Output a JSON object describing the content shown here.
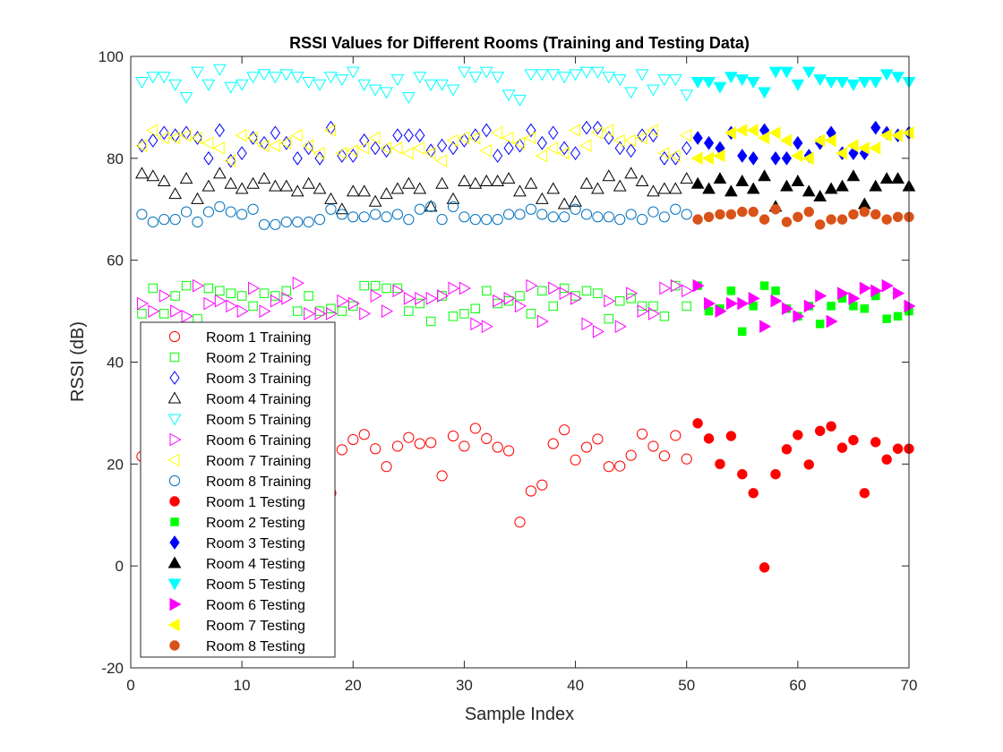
{
  "chart_data": {
    "type": "scatter",
    "title": "RSSI Values for Different Rooms (Training and Testing Data)",
    "xlabel": "Sample Index",
    "ylabel": "RSSI (dB)",
    "xlim": [
      0,
      70
    ],
    "ylim": [
      -20,
      100
    ],
    "xticks": [
      0,
      10,
      20,
      30,
      40,
      50,
      60,
      70
    ],
    "yticks": [
      -20,
      0,
      20,
      40,
      60,
      80,
      100
    ],
    "grid": false,
    "legend_position": "left",
    "series": [
      {
        "name": "Room 1 Training",
        "marker": "circle",
        "filled": false,
        "color": "#ff0000",
        "x": [
          1,
          2,
          3,
          4,
          5,
          6,
          7,
          8,
          9,
          10,
          11,
          12,
          13,
          14,
          15,
          16,
          17,
          18,
          19,
          20,
          21,
          22,
          23,
          24,
          25,
          26,
          27,
          28,
          29,
          30,
          31,
          32,
          33,
          34,
          35,
          36,
          37,
          38,
          39,
          40,
          41,
          42,
          43,
          44,
          45,
          46,
          47,
          48,
          49,
          50
        ],
        "y": [
          21.5,
          23,
          22,
          24,
          22.5,
          23,
          22,
          21,
          24,
          22.5,
          23,
          21,
          22,
          23,
          22,
          21,
          20,
          14.3,
          22.8,
          24.8,
          25.8,
          23,
          19.5,
          23.5,
          25.2,
          24,
          24.2,
          17.7,
          25.5,
          23.5,
          27,
          25,
          23.3,
          22.6,
          8.6,
          14.7,
          15.9,
          24,
          26.7,
          20.8,
          23.3,
          24.9,
          19.5,
          19.6,
          21.7,
          25.9,
          23.5,
          21.6,
          25.6,
          21
        ]
      },
      {
        "name": "Room 2 Training",
        "marker": "square",
        "filled": false,
        "color": "#00ff00",
        "x": [
          1,
          2,
          3,
          4,
          5,
          6,
          7,
          8,
          9,
          10,
          11,
          12,
          13,
          14,
          15,
          16,
          17,
          18,
          19,
          20,
          21,
          22,
          23,
          24,
          25,
          26,
          27,
          28,
          29,
          30,
          31,
          32,
          33,
          34,
          35,
          36,
          37,
          38,
          39,
          40,
          41,
          42,
          43,
          44,
          45,
          46,
          47,
          48,
          49,
          50
        ],
        "y": [
          49.5,
          54.5,
          49.5,
          53,
          55,
          48.5,
          54.5,
          54,
          53.5,
          53,
          51,
          53.5,
          53,
          54,
          50,
          53,
          50,
          50.5,
          50,
          51,
          55,
          55,
          54.5,
          54.5,
          50,
          51.5,
          48,
          53,
          49,
          49.5,
          50.5,
          54,
          51.5,
          52,
          53,
          49.5,
          54,
          51,
          54.5,
          53,
          54,
          53.5,
          48.5,
          52,
          52.5,
          51,
          51,
          49,
          55,
          51
        ]
      },
      {
        "name": "Room 3 Training",
        "marker": "diamond",
        "filled": false,
        "color": "#0000ff",
        "x": [
          1,
          2,
          3,
          4,
          5,
          6,
          7,
          8,
          9,
          10,
          11,
          12,
          13,
          14,
          15,
          16,
          17,
          18,
          19,
          20,
          21,
          22,
          23,
          24,
          25,
          26,
          27,
          28,
          29,
          30,
          31,
          32,
          33,
          34,
          35,
          36,
          37,
          38,
          39,
          40,
          41,
          42,
          43,
          44,
          45,
          46,
          47,
          48,
          49,
          50
        ],
        "y": [
          82.5,
          83.5,
          85,
          84.5,
          85,
          84,
          80,
          85.5,
          79.5,
          81,
          84,
          83,
          85,
          83,
          80,
          82,
          80,
          86,
          80.5,
          80.5,
          83.5,
          82,
          81.5,
          84.5,
          84.5,
          84.5,
          81.5,
          82.5,
          82,
          83.5,
          84.5,
          85.5,
          80.5,
          82,
          82.5,
          85.5,
          83,
          85,
          82,
          81,
          86,
          86,
          84,
          82,
          81.5,
          84.5,
          84.5,
          80,
          80,
          82
        ]
      },
      {
        "name": "Room 4 Training",
        "marker": "triangle-up",
        "filled": false,
        "color": "#000000",
        "x": [
          1,
          2,
          3,
          4,
          5,
          6,
          7,
          8,
          9,
          10,
          11,
          12,
          13,
          14,
          15,
          16,
          17,
          18,
          19,
          20,
          21,
          22,
          23,
          24,
          25,
          26,
          27,
          28,
          29,
          30,
          31,
          32,
          33,
          34,
          35,
          36,
          37,
          38,
          39,
          40,
          41,
          42,
          43,
          44,
          45,
          46,
          47,
          48,
          49,
          50
        ],
        "y": [
          77,
          76.5,
          75.5,
          73,
          76,
          72,
          74.5,
          77,
          75,
          74,
          75,
          76,
          74.5,
          74.5,
          73.5,
          75,
          74,
          72,
          70,
          73.5,
          73.5,
          71.5,
          73,
          74,
          75,
          74,
          70.5,
          75,
          72,
          75.5,
          75,
          75.5,
          75.5,
          76,
          73.5,
          75,
          72,
          74,
          71,
          71.5,
          75,
          74,
          76.5,
          74.5,
          77,
          75.5,
          73.5,
          74,
          74,
          76
        ]
      },
      {
        "name": "Room 5 Training",
        "marker": "triangle-down",
        "filled": false,
        "color": "#00ffff",
        "x": [
          1,
          2,
          3,
          4,
          5,
          6,
          7,
          8,
          9,
          10,
          11,
          12,
          13,
          14,
          15,
          16,
          17,
          18,
          19,
          20,
          21,
          22,
          23,
          24,
          25,
          26,
          27,
          28,
          29,
          30,
          31,
          32,
          33,
          34,
          35,
          36,
          37,
          38,
          39,
          40,
          41,
          42,
          43,
          44,
          45,
          46,
          47,
          48,
          49,
          50
        ],
        "y": [
          95,
          96,
          96,
          94.5,
          92,
          97,
          94.5,
          97.5,
          94,
          94.5,
          96,
          96.5,
          96,
          96.5,
          96,
          95,
          94.5,
          96,
          95.5,
          97,
          94.5,
          93.5,
          93,
          95.5,
          92,
          96,
          94.5,
          94.5,
          93.5,
          97,
          96,
          97,
          96,
          92.5,
          91.5,
          96.5,
          96.5,
          96.5,
          96,
          96.5,
          97,
          97,
          96,
          95.5,
          93,
          96.5,
          93.5,
          95.5,
          95.5,
          92.5
        ]
      },
      {
        "name": "Room 6 Training",
        "marker": "triangle-right",
        "filled": false,
        "color": "#ff00ff",
        "x": [
          1,
          2,
          3,
          4,
          5,
          6,
          7,
          8,
          9,
          10,
          11,
          12,
          13,
          14,
          15,
          16,
          17,
          18,
          19,
          20,
          21,
          22,
          23,
          24,
          25,
          26,
          27,
          28,
          29,
          30,
          31,
          32,
          33,
          34,
          35,
          36,
          37,
          38,
          39,
          40,
          41,
          42,
          43,
          44,
          45,
          46,
          47,
          48,
          49,
          50
        ],
        "y": [
          51.5,
          50,
          53,
          50,
          49,
          55,
          51.5,
          52,
          51,
          50,
          54.5,
          50,
          52,
          52.5,
          55.5,
          49.5,
          49.5,
          49.5,
          52,
          51.5,
          49.5,
          53,
          50,
          54,
          52.5,
          52.5,
          52.5,
          53,
          54.5,
          54.5,
          47.5,
          47,
          52,
          52.5,
          51,
          55,
          48,
          54.5,
          53.5,
          52.5,
          47.5,
          46,
          52,
          47,
          53.5,
          50,
          49.5,
          54.5,
          55,
          54
        ]
      },
      {
        "name": "Room 7 Training",
        "marker": "triangle-left",
        "filled": false,
        "color": "#ffff00",
        "x": [
          1,
          2,
          3,
          4,
          5,
          6,
          7,
          8,
          9,
          10,
          11,
          12,
          13,
          14,
          15,
          16,
          17,
          18,
          19,
          20,
          21,
          22,
          23,
          24,
          25,
          26,
          27,
          28,
          29,
          30,
          31,
          32,
          33,
          34,
          35,
          36,
          37,
          38,
          39,
          40,
          41,
          42,
          43,
          44,
          45,
          46,
          47,
          48,
          49,
          50
        ],
        "y": [
          82.5,
          85.5,
          84,
          84,
          84.5,
          84,
          83,
          82,
          79.5,
          84.5,
          84,
          82.5,
          82.5,
          83,
          84.5,
          82.5,
          81,
          85.5,
          81,
          81.5,
          82,
          84,
          82,
          82,
          81,
          82,
          81,
          79.5,
          83.5,
          84,
          84,
          81.5,
          85,
          84,
          83,
          84,
          80.5,
          82,
          81,
          85.5,
          82.5,
          85,
          85.5,
          83.5,
          83.5,
          84,
          85.5,
          81,
          80.5,
          84.5
        ]
      },
      {
        "name": "Room 8 Training",
        "marker": "circle",
        "filled": false,
        "color": "#0072bd",
        "x": [
          1,
          2,
          3,
          4,
          5,
          6,
          7,
          8,
          9,
          10,
          11,
          12,
          13,
          14,
          15,
          16,
          17,
          18,
          19,
          20,
          21,
          22,
          23,
          24,
          25,
          26,
          27,
          28,
          29,
          30,
          31,
          32,
          33,
          34,
          35,
          36,
          37,
          38,
          39,
          40,
          41,
          42,
          43,
          44,
          45,
          46,
          47,
          48,
          49,
          50
        ],
        "y": [
          69,
          67.5,
          68,
          68,
          69.5,
          67.5,
          69.5,
          70.5,
          69.5,
          69,
          70,
          67,
          67,
          67.5,
          67.5,
          67.5,
          68,
          70,
          69,
          68.5,
          68.5,
          69,
          68.5,
          69,
          68,
          70,
          70.5,
          68,
          70.5,
          68.5,
          68,
          68,
          68,
          69,
          69,
          70,
          69,
          68.5,
          68.5,
          70,
          69,
          68.5,
          68.5,
          68,
          69,
          68,
          69.5,
          68.5,
          70,
          69
        ]
      },
      {
        "name": "Room 1 Testing",
        "marker": "circle",
        "filled": true,
        "color": "#ff0000",
        "x": [
          51,
          52,
          53,
          54,
          55,
          56,
          57,
          58,
          59,
          60,
          61,
          62,
          63,
          64,
          65,
          66,
          67,
          68,
          69,
          70
        ],
        "y": [
          28,
          25,
          20,
          25.5,
          18,
          14.3,
          -0.3,
          18,
          22.9,
          25.7,
          19.9,
          26.5,
          27.4,
          23.2,
          24.7,
          14.3,
          24.3,
          20.9,
          23,
          23
        ]
      },
      {
        "name": "Room 2 Testing",
        "marker": "square",
        "filled": true,
        "color": "#00ff00",
        "x": [
          51,
          52,
          53,
          54,
          55,
          56,
          57,
          58,
          59,
          60,
          61,
          62,
          63,
          64,
          65,
          66,
          67,
          68,
          69,
          70
        ],
        "y": [
          55,
          50,
          50.5,
          54,
          46,
          51,
          55,
          54,
          50.5,
          49,
          51,
          47.5,
          51,
          52.5,
          51,
          50.5,
          53,
          48.5,
          49,
          50
        ]
      },
      {
        "name": "Room 3 Testing",
        "marker": "diamond",
        "filled": true,
        "color": "#0000ff",
        "x": [
          51,
          52,
          53,
          54,
          55,
          56,
          57,
          58,
          59,
          60,
          61,
          62,
          63,
          64,
          65,
          66,
          67,
          68,
          69,
          70
        ],
        "y": [
          84,
          83,
          82,
          85,
          80.5,
          80,
          85.5,
          80,
          80,
          83,
          80.5,
          83,
          85,
          81,
          81,
          81,
          86,
          85,
          84.5,
          85
        ]
      },
      {
        "name": "Room 4 Testing",
        "marker": "triangle-up",
        "filled": true,
        "color": "#000000",
        "x": [
          51,
          52,
          53,
          54,
          55,
          56,
          57,
          58,
          59,
          60,
          61,
          62,
          63,
          64,
          65,
          66,
          67,
          68,
          69,
          70
        ],
        "y": [
          75,
          74,
          76,
          73.5,
          75.5,
          74,
          76.5,
          70.5,
          74.5,
          75.5,
          73.5,
          72.5,
          74,
          74.5,
          76.5,
          71,
          74.5,
          76,
          76,
          74.5
        ]
      },
      {
        "name": "Room 5 Testing",
        "marker": "triangle-down",
        "filled": true,
        "color": "#00ffff",
        "x": [
          51,
          52,
          53,
          54,
          55,
          56,
          57,
          58,
          59,
          60,
          61,
          62,
          63,
          64,
          65,
          66,
          67,
          68,
          69,
          70
        ],
        "y": [
          95,
          95,
          94,
          96,
          95.5,
          95,
          93,
          97,
          97,
          94.5,
          97,
          95.5,
          95,
          95,
          94.5,
          95,
          95,
          96.5,
          96,
          95
        ]
      },
      {
        "name": "Room 6 Testing",
        "marker": "triangle-right",
        "filled": true,
        "color": "#ff00ff",
        "x": [
          51,
          52,
          53,
          54,
          55,
          56,
          57,
          58,
          59,
          60,
          61,
          62,
          63,
          64,
          65,
          66,
          67,
          68,
          69,
          70
        ],
        "y": [
          55,
          51.5,
          50,
          51.5,
          51.5,
          52.5,
          47,
          52,
          50.5,
          49,
          51,
          53,
          48,
          53.5,
          52.5,
          54.5,
          54,
          55,
          53.5,
          51
        ]
      },
      {
        "name": "Room 7 Testing",
        "marker": "triangle-left",
        "filled": true,
        "color": "#ffff00",
        "x": [
          51,
          52,
          53,
          54,
          55,
          56,
          57,
          58,
          59,
          60,
          61,
          62,
          63,
          64,
          65,
          66,
          67,
          68,
          69,
          70
        ],
        "y": [
          80,
          80,
          80.5,
          85,
          85.5,
          85.5,
          84,
          85,
          83.5,
          80.5,
          80,
          83.5,
          83.5,
          81,
          82.5,
          82,
          82,
          84.5,
          84.5,
          85
        ]
      },
      {
        "name": "Room 8 Testing",
        "marker": "circle",
        "filled": true,
        "color": "#d95319",
        "x": [
          51,
          52,
          53,
          54,
          55,
          56,
          57,
          58,
          59,
          60,
          61,
          62,
          63,
          64,
          65,
          66,
          67,
          68,
          69,
          70
        ],
        "y": [
          68,
          68.5,
          69,
          69,
          69.5,
          69.5,
          68,
          70,
          67.5,
          68.5,
          69.5,
          67,
          68,
          68,
          69,
          69.5,
          69,
          68,
          68.5,
          68.5
        ]
      }
    ]
  }
}
